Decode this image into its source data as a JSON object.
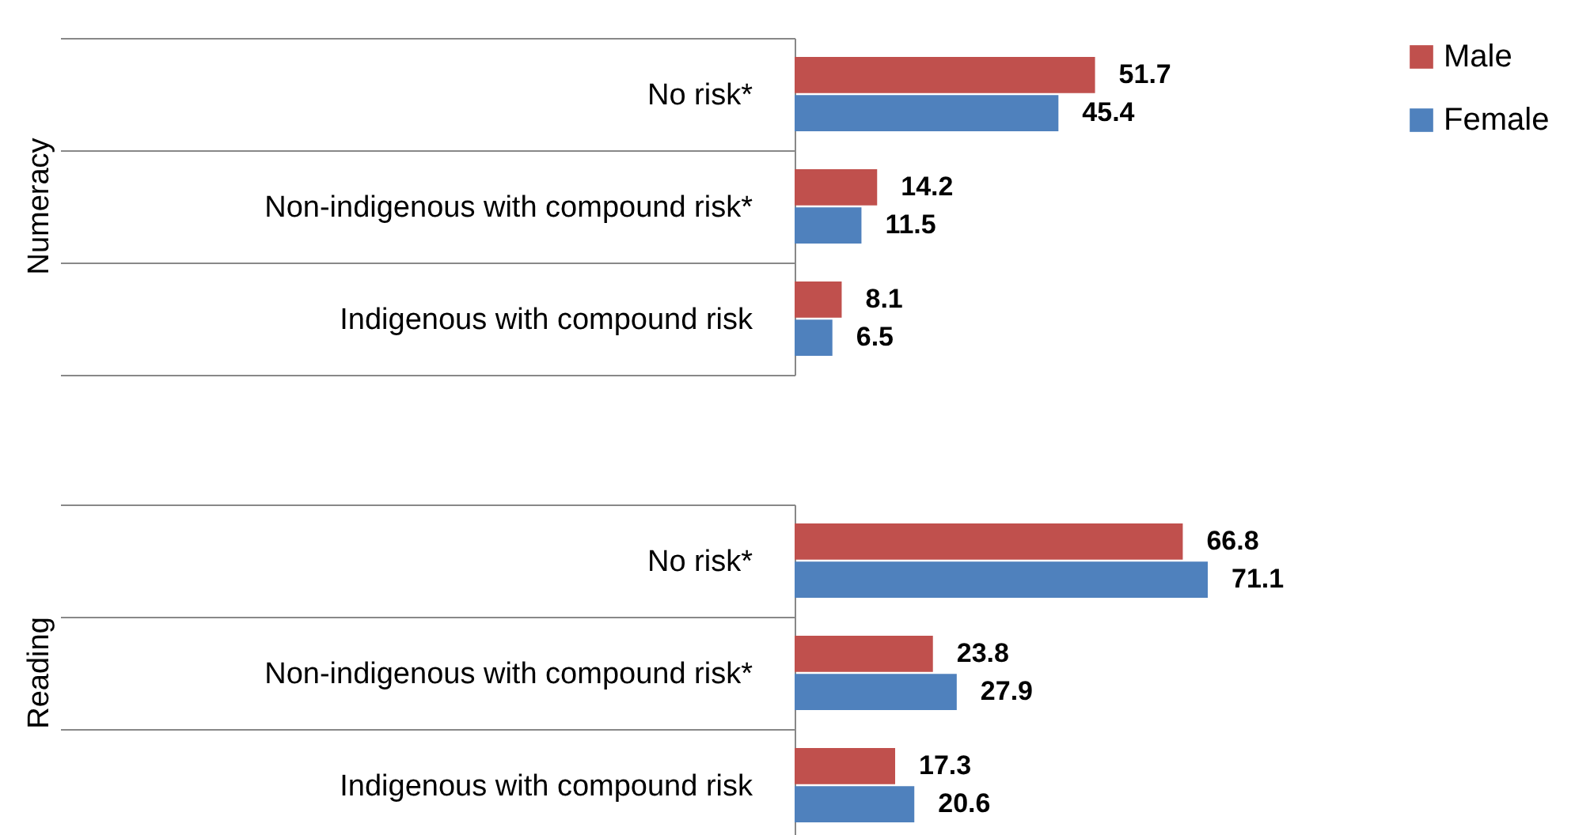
{
  "chart_data": [
    {
      "type": "bar",
      "orientation": "horizontal",
      "ylabel": "Numeracy",
      "categories": [
        "No  risk*",
        "Non-indigenous with compound risk*",
        "Indigenous with compound risk"
      ],
      "series": [
        {
          "name": "Male",
          "color": "#c0504d",
          "values": [
            51.7,
            14.2,
            8.1
          ]
        },
        {
          "name": "Female",
          "color": "#4f81bd",
          "values": [
            45.4,
            11.5,
            6.5
          ]
        }
      ],
      "data_labels": true,
      "legend": "top right"
    },
    {
      "type": "bar",
      "orientation": "horizontal",
      "ylabel": "Reading",
      "categories": [
        "No  risk*",
        "Non-indigenous with compound risk*",
        "Indigenous with compound risk"
      ],
      "series": [
        {
          "name": "Male",
          "color": "#c0504d",
          "values": [
            66.8,
            23.8,
            17.3
          ]
        },
        {
          "name": "Female",
          "color": "#4f81bd",
          "values": [
            71.1,
            27.9,
            20.6
          ]
        }
      ],
      "data_labels": true
    }
  ]
}
